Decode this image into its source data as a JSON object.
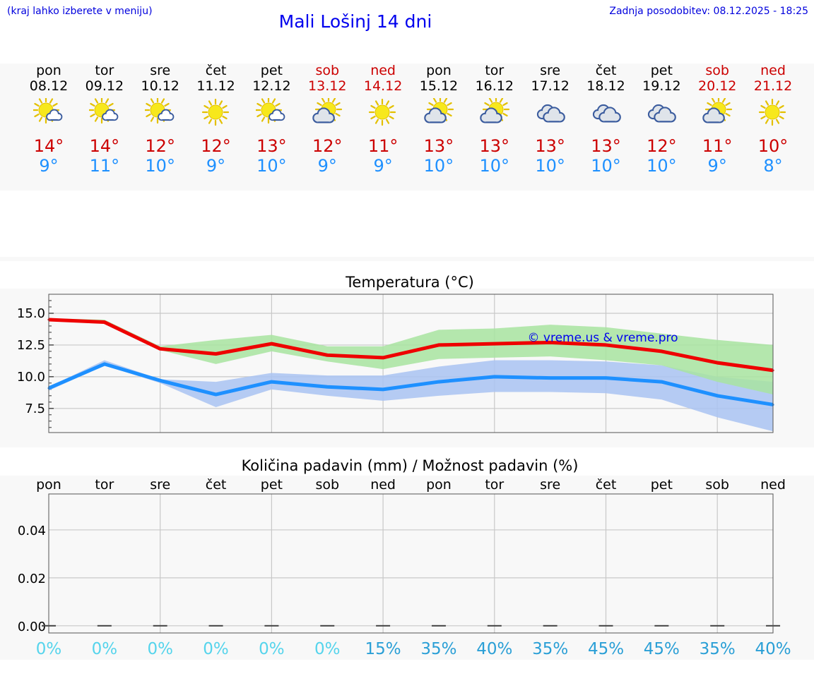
{
  "header": {
    "note": "(kraj lahko izberete v meniju)",
    "title": "Mali Lošinj 14 dni",
    "updated": "Zadnja posodobitev: 08.12.2025 - 18:25"
  },
  "colors": {
    "weekday": "#000000",
    "weekend": "#cc0000",
    "max": "#ee0000",
    "min": "#1e90ff",
    "max_band": "#a8e4a0",
    "min_band": "#a9c3f2",
    "pct_low": "#55d4ec",
    "pct_high": "#2a9fd6",
    "watermark": "#0000ee"
  },
  "days": [
    {
      "name": "pon",
      "date": "08.12",
      "weekend": false,
      "icon": "sun-cloud-icon",
      "max": "14°",
      "min": "9°"
    },
    {
      "name": "tor",
      "date": "09.12",
      "weekend": false,
      "icon": "sun-cloud-icon",
      "max": "14°",
      "min": "11°"
    },
    {
      "name": "sre",
      "date": "10.12",
      "weekend": false,
      "icon": "sun-cloud-icon",
      "max": "12°",
      "min": "10°"
    },
    {
      "name": "čet",
      "date": "11.12",
      "weekend": false,
      "icon": "sun-icon",
      "max": "12°",
      "min": "9°"
    },
    {
      "name": "pet",
      "date": "12.12",
      "weekend": false,
      "icon": "sun-cloud-icon",
      "max": "13°",
      "min": "10°"
    },
    {
      "name": "sob",
      "date": "13.12",
      "weekend": true,
      "icon": "sun-cloud-large-icon",
      "max": "12°",
      "min": "9°"
    },
    {
      "name": "ned",
      "date": "14.12",
      "weekend": true,
      "icon": "sun-icon",
      "max": "11°",
      "min": "9°"
    },
    {
      "name": "pon",
      "date": "15.12",
      "weekend": false,
      "icon": "sun-cloud-large-icon",
      "max": "13°",
      "min": "10°"
    },
    {
      "name": "tor",
      "date": "16.12",
      "weekend": false,
      "icon": "sun-cloud-large-icon",
      "max": "13°",
      "min": "10°"
    },
    {
      "name": "sre",
      "date": "17.12",
      "weekend": false,
      "icon": "cloudy-icon",
      "max": "13°",
      "min": "10°"
    },
    {
      "name": "čet",
      "date": "18.12",
      "weekend": false,
      "icon": "cloudy-icon",
      "max": "13°",
      "min": "10°"
    },
    {
      "name": "pet",
      "date": "19.12",
      "weekend": false,
      "icon": "cloudy-icon",
      "max": "12°",
      "min": "10°"
    },
    {
      "name": "sob",
      "date": "20.12",
      "weekend": true,
      "icon": "sun-cloud-large-icon",
      "max": "11°",
      "min": "9°"
    },
    {
      "name": "ned",
      "date": "21.12",
      "weekend": true,
      "icon": "sun-icon",
      "max": "10°",
      "min": "8°"
    }
  ],
  "chart_data": [
    {
      "type": "line",
      "title": "Temperatura (°C)",
      "watermark": "© vreme.us & vreme.pro",
      "x": [
        0,
        1,
        2,
        3,
        4,
        5,
        6,
        7,
        8,
        9,
        10,
        11,
        12,
        13
      ],
      "ylim": [
        5.6,
        16.5
      ],
      "yticks": [
        7.5,
        10.0,
        12.5,
        15.0
      ],
      "ytick_labels": [
        "7.5",
        "10.0",
        "12.5",
        "15.0"
      ],
      "grid": true,
      "series": [
        {
          "name": "max",
          "values": [
            14.5,
            14.3,
            12.2,
            11.8,
            12.6,
            11.7,
            11.5,
            12.5,
            12.6,
            12.7,
            12.5,
            12.0,
            11.1,
            10.5
          ],
          "band_low": [
            14.5,
            14.3,
            12.1,
            11.0,
            12.0,
            11.2,
            10.6,
            11.4,
            11.5,
            11.6,
            11.3,
            10.9,
            9.6,
            8.6
          ],
          "band_high": [
            14.6,
            14.5,
            12.4,
            12.9,
            13.3,
            12.4,
            12.4,
            13.7,
            13.8,
            14.1,
            13.9,
            13.4,
            12.9,
            12.5
          ]
        },
        {
          "name": "min",
          "values": [
            9.1,
            11.0,
            9.7,
            8.6,
            9.6,
            9.2,
            9.0,
            9.6,
            10.0,
            9.9,
            9.9,
            9.6,
            8.5,
            7.8
          ],
          "band_low": [
            8.9,
            10.9,
            9.5,
            7.6,
            9.0,
            8.5,
            8.1,
            8.5,
            8.8,
            8.8,
            8.7,
            8.2,
            6.8,
            5.7
          ],
          "band_high": [
            9.2,
            11.3,
            9.8,
            9.6,
            10.3,
            10.1,
            10.1,
            10.8,
            11.3,
            11.3,
            11.2,
            10.9,
            10.0,
            9.6
          ]
        }
      ]
    },
    {
      "type": "bar",
      "title": "Količina padavin (mm) / Možnost padavin (%)",
      "categories": [
        "pon",
        "tor",
        "sre",
        "čet",
        "pet",
        "sob",
        "ned",
        "pon",
        "tor",
        "sre",
        "čet",
        "pet",
        "sob",
        "ned"
      ],
      "values": [
        0,
        0,
        0,
        0,
        0,
        0,
        0,
        0,
        0,
        0,
        0,
        0,
        0,
        0
      ],
      "ylim": [
        -0.003,
        0.055
      ],
      "yticks": [
        0.0,
        0.02,
        0.04
      ],
      "ytick_labels": [
        "0.00",
        "0.02",
        "0.04"
      ],
      "probability": [
        "0%",
        "0%",
        "0%",
        "0%",
        "0%",
        "0%",
        "15%",
        "35%",
        "40%",
        "35%",
        "45%",
        "45%",
        "35%",
        "40%"
      ],
      "grid": true
    }
  ]
}
